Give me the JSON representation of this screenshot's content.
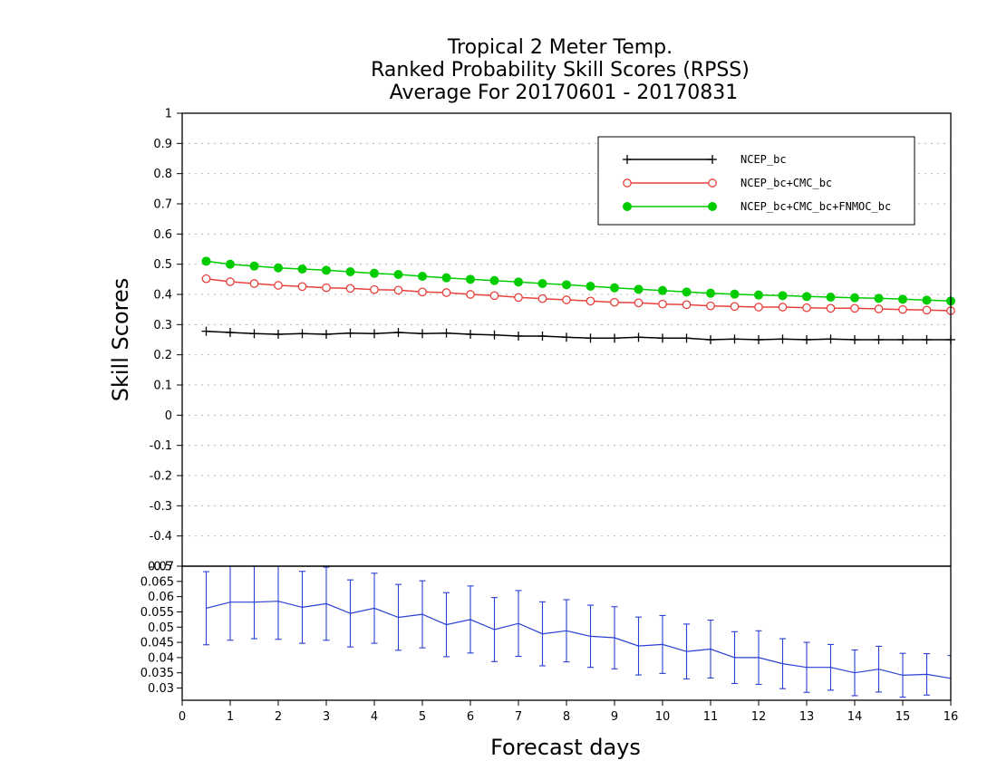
{
  "chart_data": {
    "type": "line",
    "title": [
      "Tropical 2 Meter Temp.",
      "Ranked Probability Skill Scores (RPSS)",
      "Average For 20170601 - 20170831"
    ],
    "xlabel": "Forecast days",
    "ylabel": "Skill Scores",
    "xlim": [
      0,
      16
    ],
    "ylim": [
      -0.5,
      1
    ],
    "grid": true,
    "legend_placement": "top-right",
    "x_ticks": [
      "0",
      "1",
      "2",
      "3",
      "4",
      "5",
      "6",
      "7",
      "8",
      "9",
      "10",
      "11",
      "12",
      "13",
      "14",
      "15",
      "16"
    ],
    "y_ticks": [
      "-0.5",
      "-0.4",
      "-0.3",
      "-0.2",
      "-0.1",
      "0",
      "0.1",
      "0.2",
      "0.3",
      "0.4",
      "0.5",
      "0.6",
      "0.7",
      "0.8",
      "0.9",
      "1"
    ],
    "x": [
      0.5,
      1,
      1.5,
      2,
      2.5,
      3,
      3.5,
      4,
      4.5,
      5,
      5.5,
      6,
      6.5,
      7,
      7.5,
      8,
      8.5,
      9,
      9.5,
      10,
      10.5,
      11,
      11.5,
      12,
      12.5,
      13,
      13.5,
      14,
      14.5,
      15,
      15.5,
      16
    ],
    "series": [
      {
        "name": "NCEP_bc",
        "color": "#000000",
        "marker": "plus",
        "values": [
          0.278,
          0.274,
          0.27,
          0.268,
          0.27,
          0.268,
          0.272,
          0.27,
          0.274,
          0.27,
          0.272,
          0.268,
          0.266,
          0.262,
          0.262,
          0.258,
          0.255,
          0.255,
          0.258,
          0.255,
          0.255,
          0.25,
          0.252,
          0.25,
          0.252,
          0.25,
          0.252,
          0.25,
          0.25,
          0.25,
          0.25,
          0.25
        ]
      },
      {
        "name": "NCEP_bc+CMC_bc",
        "color": "#e8403c",
        "marker": "open-circle",
        "values": [
          0.452,
          0.442,
          0.436,
          0.43,
          0.426,
          0.422,
          0.42,
          0.416,
          0.414,
          0.408,
          0.406,
          0.4,
          0.396,
          0.39,
          0.386,
          0.382,
          0.378,
          0.374,
          0.372,
          0.368,
          0.366,
          0.362,
          0.36,
          0.358,
          0.358,
          0.356,
          0.354,
          0.354,
          0.352,
          0.35,
          0.348,
          0.346
        ]
      },
      {
        "name": "NCEP_bc+CMC_bc+FNMOC_bc",
        "color": "#00cc00",
        "marker": "filled-circle",
        "values": [
          0.51,
          0.5,
          0.494,
          0.488,
          0.484,
          0.48,
          0.475,
          0.47,
          0.466,
          0.46,
          0.455,
          0.45,
          0.446,
          0.441,
          0.436,
          0.432,
          0.427,
          0.422,
          0.417,
          0.413,
          0.408,
          0.404,
          0.401,
          0.398,
          0.396,
          0.393,
          0.391,
          0.389,
          0.387,
          0.384,
          0.381,
          0.378
        ]
      }
    ],
    "lower_panel": {
      "type": "line-errorbar",
      "color": "#2a3fd4",
      "ylim": [
        0.026,
        0.07
      ],
      "y_ticks": [
        "0.03",
        "0.035",
        "0.04",
        "0.045",
        "0.05",
        "0.055",
        "0.06",
        "0.065",
        "0.07"
      ],
      "values": [
        0.0562,
        0.0582,
        0.0582,
        0.0585,
        0.0565,
        0.0577,
        0.0545,
        0.0562,
        0.0532,
        0.0542,
        0.0508,
        0.0525,
        0.0492,
        0.0512,
        0.0478,
        0.0488,
        0.047,
        0.0465,
        0.0438,
        0.0443,
        0.042,
        0.0428,
        0.04,
        0.04,
        0.038,
        0.0368,
        0.0368,
        0.035,
        0.0362,
        0.0342,
        0.0345,
        0.0332
      ],
      "err": [
        0.012,
        0.0125,
        0.012,
        0.0125,
        0.0118,
        0.012,
        0.011,
        0.0115,
        0.0108,
        0.011,
        0.0105,
        0.011,
        0.0105,
        0.0108,
        0.0105,
        0.0102,
        0.0102,
        0.0102,
        0.0095,
        0.0095,
        0.009,
        0.0095,
        0.0085,
        0.0088,
        0.0082,
        0.0082,
        0.0075,
        0.0075,
        0.0075,
        0.0072,
        0.0068,
        0.0075
      ]
    }
  }
}
